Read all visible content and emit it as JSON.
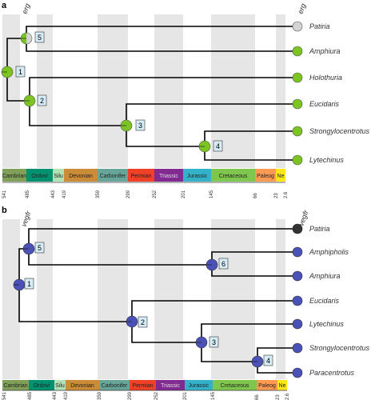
{
  "panel_a": {
    "letter": "a",
    "root_label": "erg",
    "tip_label": "erg",
    "taxa": [
      "Patiria",
      "Amphiura",
      "Holothuria",
      "Eucidaris",
      "Strongylocentrotus",
      "Lytechinus"
    ],
    "node_numbers": [
      "1",
      "2",
      "3",
      "4",
      "5"
    ],
    "node_state_colors": {
      "present": "#7cc520",
      "absent": "#d4d4d4"
    },
    "tip_states": [
      "absent",
      "present",
      "present",
      "present",
      "present",
      "present"
    ]
  },
  "panel_b": {
    "letter": "b",
    "root_label": "vegfr",
    "tip_label": "vegfr",
    "taxa": [
      "Patiria",
      "Amphipholis",
      "Amphiura",
      "Eucidaris",
      "Lytechinus",
      "Strongylocentrotus",
      "Paracentrotus"
    ],
    "node_numbers": [
      "1",
      "2",
      "3",
      "4",
      "5",
      "6"
    ],
    "node_state_colors": {
      "present": "#4a52b8",
      "absent": "#333333"
    },
    "tip_states": [
      "absent",
      "present",
      "present",
      "present",
      "present",
      "present",
      "present"
    ]
  },
  "timescale": {
    "periods": [
      {
        "name": "Cambrian",
        "color": "#7fa056"
      },
      {
        "name": "Ordovi",
        "color": "#009270"
      },
      {
        "name": "Silu",
        "color": "#b3e1b6"
      },
      {
        "name": "Devonian",
        "color": "#cb8c37"
      },
      {
        "name": "Carbonifer",
        "color": "#67a599"
      },
      {
        "name": "Permian",
        "color": "#f04028"
      },
      {
        "name": "Triassic",
        "color": "#812b92"
      },
      {
        "name": "Jurassic",
        "color": "#34b2c9"
      },
      {
        "name": "Cretaceous",
        "color": "#7fc64e"
      },
      {
        "name": "Paleog",
        "color": "#fd9a52"
      },
      {
        "name": "Ne",
        "color": "#ffe619"
      }
    ],
    "ticks_a": [
      "541",
      "485",
      "443",
      "419",
      "359",
      "299",
      "252",
      "201",
      "145",
      "66",
      "23",
      "2.6"
    ],
    "ticks_b": [
      "541",
      "485",
      "443",
      "419",
      "359",
      "299",
      "252",
      "201",
      "145",
      "66",
      "23",
      "2.6"
    ]
  }
}
